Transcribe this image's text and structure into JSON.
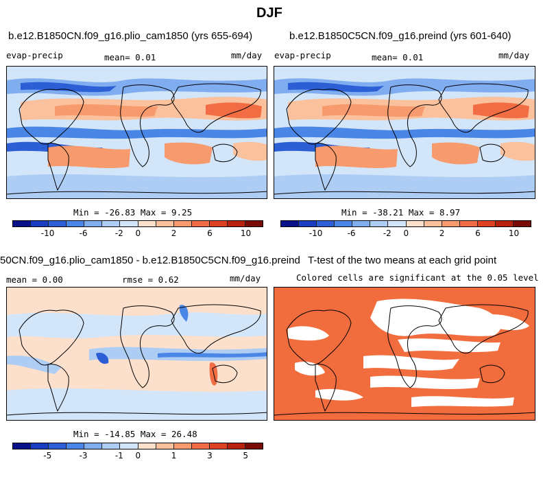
{
  "figure": {
    "title": "DJF"
  },
  "panel1": {
    "title": "b.e12.B1850CN.f09_g16.plio_cam1850 (yrs 655-694)",
    "left": "evap-precip",
    "mean": "mean=    0.01",
    "units": "mm/day",
    "stats": "Min = -26.83 Max =    9.25"
  },
  "panel2": {
    "title": "b.e12.B1850C5CN.f09_g16.preind (yrs 601-640)",
    "left": "evap-precip",
    "mean": "mean=    0.01",
    "units": "mm/day",
    "stats": "Min = -38.21 Max =    8.97"
  },
  "panel3": {
    "title": "50CN.f09_g16.plio_cam1850 - b.e12.B1850C5CN.f09_g16.preind",
    "mean": "mean =    0.00",
    "rmse": "rmse =    0.62",
    "units": "mm/day",
    "stats": "Min = -14.85 Max =   26.48"
  },
  "panel4": {
    "title": "T-test of the two means at each grid point",
    "subtitle": "Colored cells are significant at the 0.05 level"
  },
  "colorbar_top": {
    "colors": [
      "#08108a",
      "#1a3cc0",
      "#2c5fd6",
      "#4a86e6",
      "#7fadf0",
      "#aecdf5",
      "#d3e5f8",
      "#fde0cc",
      "#fbc09c",
      "#f79a6e",
      "#f26d43",
      "#df4222",
      "#b8200f",
      "#7b0b06"
    ],
    "tick_labels": [
      "-10",
      "-6",
      "-2",
      "0",
      "2",
      "6",
      "10"
    ]
  },
  "colorbar_bottom": {
    "colors": [
      "#08108a",
      "#1a3cc0",
      "#2c5fd6",
      "#4a86e6",
      "#7fadf0",
      "#aecdf5",
      "#d3e5f8",
      "#fde0cc",
      "#fbc09c",
      "#f79a6e",
      "#f26d43",
      "#df4222",
      "#b8200f",
      "#7b0b06"
    ],
    "tick_labels": [
      "-5",
      "-3",
      "-1",
      "0",
      "1",
      "3",
      "5"
    ]
  },
  "ttest_color": "#f26d3d"
}
